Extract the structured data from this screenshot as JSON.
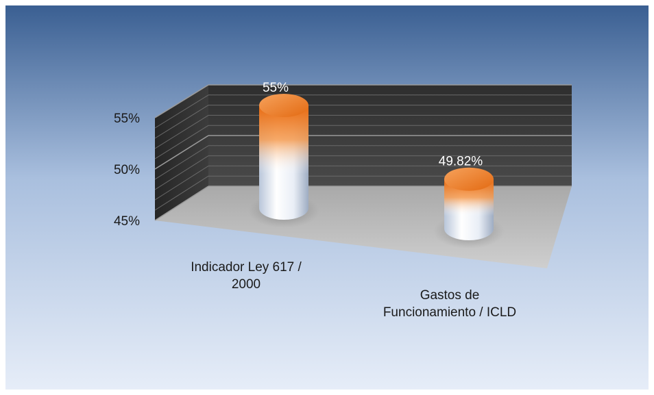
{
  "chart_data": {
    "type": "bar",
    "style": "3d-cylinder",
    "title": "",
    "xlabel": "",
    "ylabel": "",
    "categories": [
      "Indicador Ley 617 / 2000",
      "Gastos de Funcionamiento / ICLD"
    ],
    "category_lines": [
      [
        "Indicador Ley 617 /",
        "2000"
      ],
      [
        "Gastos de",
        "Funcionamiento / ICLD"
      ]
    ],
    "values": [
      55,
      49.82
    ],
    "data_labels": [
      "55%",
      "49.82%"
    ],
    "ylim": [
      45,
      55
    ],
    "yticks": [
      45,
      50,
      55
    ],
    "ytick_labels": [
      "45%",
      "50%",
      "55%"
    ],
    "grid": true,
    "legend": "none",
    "colors": {
      "background_top": "#3a5f92",
      "background_bottom": "#e4ecf7",
      "back_wall": "#3a3a3a",
      "floor": "#b8b8b8",
      "bar_top": "#f07a18",
      "bar_body": "#e8eef8"
    }
  }
}
